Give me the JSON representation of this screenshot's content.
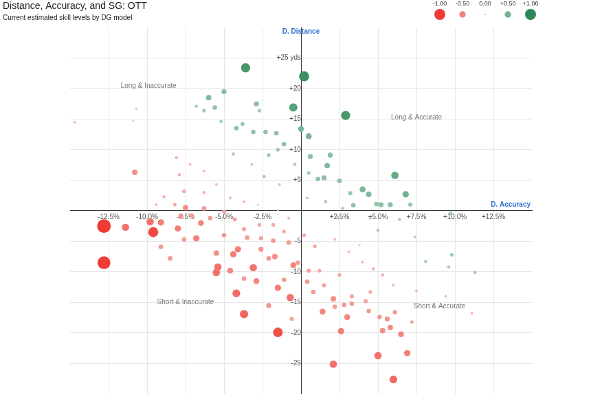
{
  "chart_data": {
    "type": "bubble",
    "title": "Distance, Accuracy, and SG: OTT",
    "subtitle": "Current estimated skill levels by DG model",
    "x_label": "D. Accuracy",
    "y_label": "D. Distance",
    "annotations": [
      "Long & Inaccurate",
      "Long & Accurate",
      "Short & Inaccurate",
      "Short & Accurate"
    ],
    "x": [
      -3.6,
      0.2,
      -0.5,
      2.9,
      6.1,
      6.8,
      0.0,
      0.5,
      -6.0,
      -5.0,
      -2.9,
      -5.6,
      -6.3,
      -6.8,
      -4.2,
      -3.1,
      -2.3,
      -1.6,
      -1.1,
      1.9,
      0.6,
      1.7,
      1.5,
      1.1,
      2.5,
      4.0,
      4.4,
      5.2,
      5.8,
      3.4,
      4.9,
      7.1,
      9.7,
      9.8,
      9.6,
      11.3,
      8.1,
      6.4,
      5.0,
      2.4,
      -2.7,
      -3.8,
      -5.2,
      -1.5,
      -0.4,
      -0.1,
      0.5,
      -2.4,
      -3.2,
      -4.4,
      -2.1,
      3.2,
      2.7,
      4.5,
      7.4,
      0.4,
      1.6,
      -1.4,
      -10.7,
      -10.9,
      -12.8,
      -12.8,
      -11.4,
      -9.8,
      -9.6,
      -9.1,
      -8.0,
      -6.8,
      -6.5,
      -7.5,
      -10.8,
      -14.7,
      -5.5,
      -5.4,
      -5.5,
      -4.4,
      -4.1,
      -4.6,
      -3.1,
      -4.2,
      -3.7,
      -2.9,
      -1.5,
      -1.5,
      -0.7,
      -0.5,
      -1.7,
      -2.6,
      -1.8,
      -0.8,
      -0.2,
      1.4,
      2.1,
      3.0,
      2.6,
      2.1,
      5.0,
      6.0,
      6.9,
      6.5,
      5.3,
      5.8,
      5.6,
      5.1,
      6.1,
      4.4,
      3.3,
      2.8,
      2.2,
      0.8,
      0.4,
      1.5,
      2.5,
      4.5,
      3.3,
      4.2,
      7.2,
      11.1,
      8.6,
      9.4,
      7.5,
      6.0,
      -8.5,
      -7.6,
      -9.1,
      -7.8,
      -7.1,
      -6.3,
      -5.9,
      -5.0,
      -4.3,
      -3.7,
      -2.7,
      -1.8,
      -1.1,
      0.2,
      0.9,
      0.5,
      1.2,
      -8.1,
      -7.9,
      -7.2,
      -6.3,
      -7.6,
      -6.3,
      -5.5,
      -4.6,
      -3.7,
      -2.8,
      -1.5,
      -0.8,
      2.2,
      3.1,
      4.0,
      4.7,
      5.3,
      3.8,
      -8.2,
      -8.9,
      -9.4,
      -5.0,
      -3.5,
      -2.6,
      -2.1,
      -3.7,
      -1.1,
      -2.1,
      -0.6
    ],
    "values": [
      23.4,
      22.0,
      16.9,
      15.6,
      5.8,
      2.7,
      13.4,
      12.2,
      18.5,
      19.5,
      17.5,
      16.9,
      16.4,
      17.1,
      13.5,
      12.9,
      12.9,
      12.7,
      10.9,
      9.1,
      8.9,
      7.4,
      5.4,
      5.2,
      4.9,
      3.5,
      2.7,
      1.0,
      1.0,
      0.9,
      1.1,
      1.0,
      -0.4,
      -7.2,
      -9.2,
      -10.1,
      -8.3,
      -1.4,
      -3.2,
      -1.0,
      16.4,
      14.2,
      14.6,
      10.0,
      7.6,
      5.4,
      6.2,
      5.6,
      7.6,
      9.3,
      9.1,
      2.9,
      0.4,
      -1.2,
      -4.3,
      2.1,
      1.5,
      4.3,
      16.7,
      14.7,
      -2.5,
      -8.5,
      -2.7,
      -1.8,
      -3.5,
      -1.9,
      -2.9,
      -4.5,
      -2.0,
      0.5,
      6.3,
      14.5,
      -6.9,
      -9.2,
      -10.1,
      -7.1,
      -6.3,
      -9.8,
      -9.3,
      -13.5,
      -16.9,
      -11.5,
      -12.6,
      -19.9,
      -14.2,
      -8.9,
      -7.5,
      -6.3,
      -4.9,
      -5.2,
      -8.5,
      -16.5,
      -14.4,
      -17.4,
      -19.7,
      -25.1,
      -23.7,
      -27.6,
      -23.3,
      -20.2,
      -19.6,
      -19.1,
      -17.7,
      -17.4,
      -16.6,
      -16.4,
      -15.2,
      -15.4,
      -15.7,
      -13.3,
      -11.6,
      -12.2,
      -10.5,
      -13.3,
      -14.0,
      -14.8,
      -18.2,
      -16.8,
      -15.5,
      -14.0,
      -13.1,
      -12.2,
      -7.8,
      -4.7,
      -5.9,
      -0.9,
      -0.8,
      0.4,
      -1.2,
      -0.1,
      -1.4,
      -3.0,
      -2.3,
      -2.3,
      -3.4,
      -4.0,
      -5.8,
      -9.8,
      -9.8,
      8.7,
      5.9,
      7.6,
      6.5,
      3.2,
      3.0,
      4.3,
      2.1,
      1.5,
      1.0,
      0.1,
      -1.2,
      -4.7,
      -6.7,
      -8.4,
      -9.5,
      -10.5,
      -5.6,
      1.0,
      2.3,
      1.0,
      -4.0,
      -4.4,
      -4.5,
      -7.8,
      -11.1,
      -11.3,
      -15.5,
      -17.7
    ],
    "sg": [
      0.8,
      0.9,
      0.7,
      0.8,
      0.6,
      0.5,
      0.45,
      0.45,
      0.4,
      0.35,
      0.35,
      0.3,
      0.2,
      0.15,
      0.3,
      0.3,
      0.3,
      0.3,
      0.3,
      0.35,
      0.35,
      0.4,
      0.35,
      0.3,
      0.3,
      0.45,
      0.4,
      0.35,
      0.35,
      0.3,
      0.3,
      0.25,
      0.2,
      0.2,
      0.15,
      0.15,
      0.15,
      0.15,
      0.15,
      0.1,
      0.2,
      0.25,
      0.15,
      0.2,
      0.15,
      0.15,
      0.2,
      0.15,
      0.1,
      0.15,
      0.2,
      0.25,
      0.15,
      0.1,
      0.1,
      0.1,
      0.15,
      0.1,
      0.05,
      0.03,
      -1.3,
      -1.2,
      -0.6,
      -0.6,
      -0.9,
      -0.5,
      -0.5,
      -0.5,
      -0.45,
      -0.4,
      -0.4,
      -0.1,
      -0.4,
      -0.6,
      -0.6,
      -0.5,
      -0.5,
      -0.45,
      -0.6,
      -0.65,
      -0.7,
      -0.45,
      -0.5,
      -0.85,
      -0.6,
      -0.45,
      -0.4,
      -0.35,
      -0.3,
      -0.3,
      -0.3,
      -0.45,
      -0.4,
      -0.45,
      -0.5,
      -0.6,
      -0.6,
      -0.65,
      -0.5,
      -0.45,
      -0.4,
      -0.4,
      -0.35,
      -0.3,
      -0.3,
      -0.3,
      -0.3,
      -0.3,
      -0.3,
      -0.3,
      -0.3,
      -0.25,
      -0.2,
      -0.2,
      -0.25,
      -0.25,
      -0.2,
      -0.1,
      -0.1,
      -0.1,
      -0.1,
      -0.1,
      -0.3,
      -0.3,
      -0.3,
      -0.35,
      -0.3,
      -0.3,
      -0.3,
      -0.25,
      -0.25,
      -0.25,
      -0.2,
      -0.2,
      -0.2,
      -0.2,
      -0.2,
      -0.25,
      -0.2,
      -0.15,
      -0.15,
      -0.1,
      -0.1,
      -0.2,
      -0.15,
      -0.1,
      -0.1,
      -0.1,
      -0.05,
      -0.05,
      -0.1,
      -0.1,
      -0.1,
      -0.1,
      -0.15,
      -0.15,
      -0.05,
      -0.2,
      -0.15,
      -0.1,
      -0.3,
      -0.3,
      -0.25,
      -0.3,
      -0.3,
      -0.3,
      -0.35,
      -0.25
    ],
    "xlim": [
      -15,
      15
    ],
    "ylim": [
      -30,
      30
    ],
    "xticks": [
      {
        "value": -12.5,
        "label": "-12.5%"
      },
      {
        "value": -10,
        "label": "-10.0%"
      },
      {
        "value": -7.5,
        "label": "-7.5%"
      },
      {
        "value": -5,
        "label": "-5.0%"
      },
      {
        "value": -2.5,
        "label": "-2.5%"
      },
      {
        "value": 2.5,
        "label": "+2.5%"
      },
      {
        "value": 5,
        "label": "+5.0%"
      },
      {
        "value": 7.5,
        "label": "+7.5%"
      },
      {
        "value": 10,
        "label": "+10.0%"
      },
      {
        "value": 12.5,
        "label": "+12.5%"
      }
    ],
    "yticks": [
      {
        "value": 25,
        "label": "+25 yds"
      },
      {
        "value": 20,
        "label": "+20"
      },
      {
        "value": 15,
        "label": "+15"
      },
      {
        "value": 10,
        "label": "+10"
      },
      {
        "value": 5,
        "label": "+5"
      },
      -5,
      -10,
      -15,
      -20,
      -25
    ],
    "grid": true,
    "sg_scale": {
      "range": [
        -1,
        1
      ],
      "ticks": [
        {
          "value": -1,
          "label": "-1.00"
        },
        {
          "value": -0.5,
          "label": "-0.50"
        },
        {
          "value": 0,
          "label": "0.00"
        },
        {
          "value": 0.5,
          "label": "+0.50"
        },
        {
          "value": 1,
          "label": "+1.00"
        }
      ]
    }
  }
}
